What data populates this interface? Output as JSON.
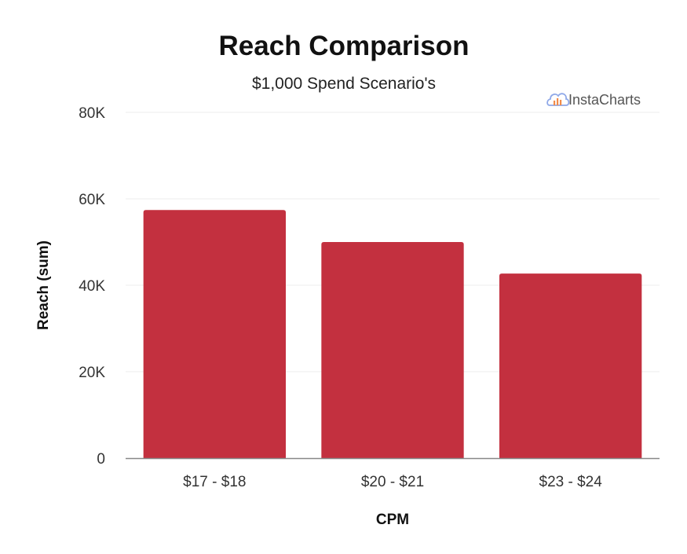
{
  "chart_data": {
    "type": "bar",
    "title": "Reach Comparison",
    "subtitle": "$1,000 Spend Scenario's",
    "xlabel": "CPM",
    "ylabel": "Reach (sum)",
    "categories": [
      "$17 - $18",
      "$20 - $21",
      "$23 - $24"
    ],
    "values": [
      57400,
      50000,
      42700
    ],
    "ylim": [
      0,
      80000
    ],
    "yticks": [
      0,
      20000,
      40000,
      60000,
      80000
    ],
    "ytick_labels": [
      "0",
      "20K",
      "40K",
      "60K",
      "80K"
    ],
    "grid": true,
    "bar_color": "#c3303f",
    "grid_color": "#ececec",
    "axis_color": "#888888"
  },
  "watermark": {
    "text": "InstaCharts",
    "icon": "cloud-bar-chart-icon"
  }
}
